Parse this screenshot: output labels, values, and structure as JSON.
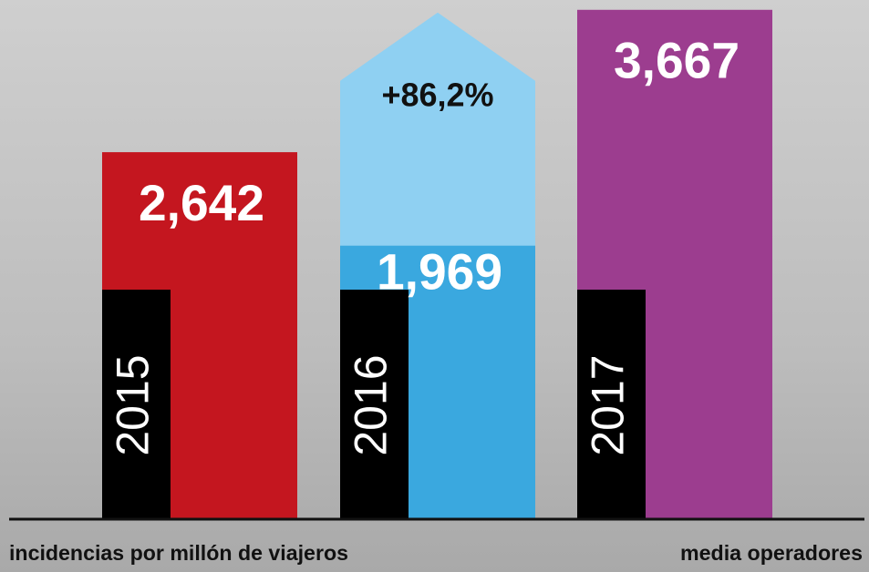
{
  "chart_data": {
    "type": "bar",
    "categories": [
      "2015",
      "2016",
      "2017"
    ],
    "values": [
      2.642,
      1.969,
      3.667
    ],
    "value_labels": [
      "2,642",
      "1,969",
      "3,667"
    ],
    "colors": [
      "#c4161f",
      "#3aa8df",
      "#9c3d8f"
    ],
    "annotation": "+86,2%",
    "x_label": "incidencias por millón de viajeros",
    "source": "media operadores"
  }
}
